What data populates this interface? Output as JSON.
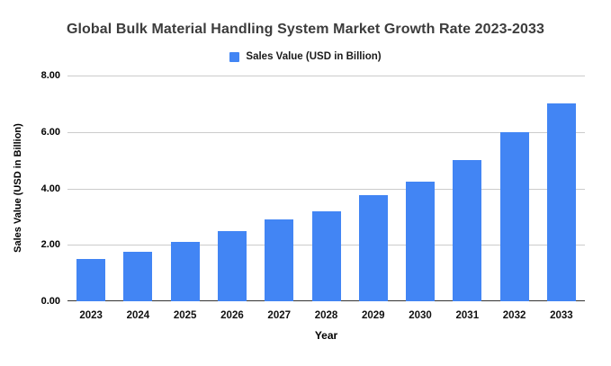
{
  "chart_data": {
    "type": "bar",
    "title": "Global Bulk Material Handling System Market Growth Rate 2023-2033",
    "legend_label": "Sales Value (USD in Billion)",
    "xlabel": "Year",
    "ylabel": "Sales Value (USD in Billion)",
    "categories": [
      "2023",
      "2024",
      "2025",
      "2026",
      "2027",
      "2028",
      "2029",
      "2030",
      "2031",
      "2032",
      "2033"
    ],
    "values": [
      1.5,
      1.75,
      2.1,
      2.5,
      2.9,
      3.2,
      3.75,
      4.25,
      5.0,
      6.0,
      7.0
    ],
    "ylim": [
      0,
      8
    ],
    "yticks": [
      0,
      2,
      4,
      6,
      8
    ],
    "ytick_labels": [
      "0.00",
      "2.00",
      "4.00",
      "6.00",
      "8.00"
    ],
    "grid": true,
    "legend_position": "top",
    "bar_color": "#4285F4",
    "background_color": "#ffffff"
  }
}
